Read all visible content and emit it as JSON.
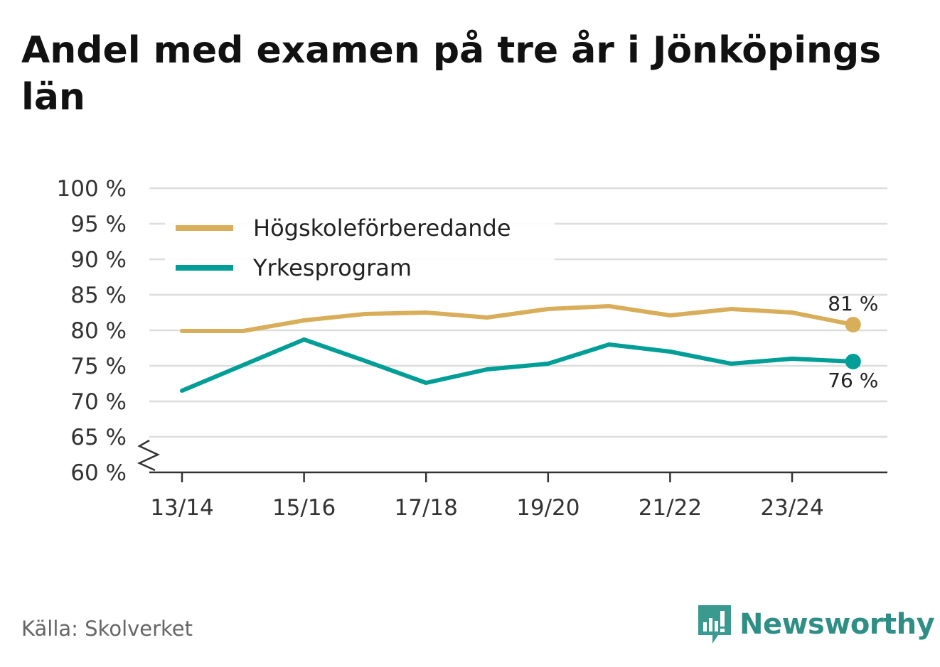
{
  "chart_data": {
    "type": "line",
    "title": "Andel med examen på tre år i Jönköpings län",
    "xlabel": "",
    "ylabel": "",
    "x": [
      "13/14",
      "14/15",
      "15/16",
      "16/17",
      "17/18",
      "18/19",
      "19/20",
      "20/21",
      "21/22",
      "22/23",
      "23/24",
      "24/25"
    ],
    "x_tick_labels": [
      "13/14",
      "15/16",
      "17/18",
      "19/20",
      "21/22",
      "23/24"
    ],
    "y_ticks": [
      60,
      65,
      70,
      75,
      80,
      85,
      90,
      95,
      100
    ],
    "y_tick_labels": [
      "60 %",
      "65 %",
      "70 %",
      "75 %",
      "80 %",
      "85 %",
      "90 %",
      "95 %",
      "100 %"
    ],
    "ylim": [
      60,
      100
    ],
    "axis_break": true,
    "grid": true,
    "legend_position": "top-left",
    "series": [
      {
        "name": "Högskoleförberedande",
        "color": "#d9ae5a",
        "values": [
          79.9,
          79.9,
          81.4,
          82.3,
          82.5,
          81.8,
          83.0,
          83.4,
          82.1,
          83.0,
          82.5,
          80.8
        ],
        "end_label": "81 %"
      },
      {
        "name": "Yrkesprogram",
        "color": "#009e96",
        "values": [
          71.5,
          75.1,
          78.7,
          75.7,
          72.6,
          74.5,
          75.3,
          78.0,
          77.0,
          75.3,
          76.0,
          75.6
        ],
        "end_label": "76 %"
      }
    ]
  },
  "footer": {
    "source": "Källa: Skolverket",
    "brand": "Newsworthy",
    "brand_icon": "newsworthy-logo-icon",
    "brand_color": "#2f8f86"
  }
}
